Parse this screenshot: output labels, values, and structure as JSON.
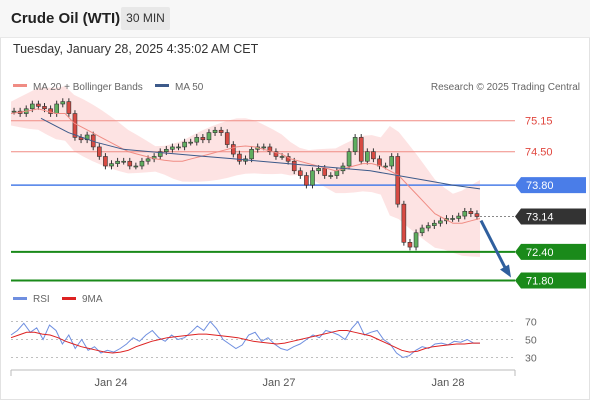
{
  "header": {
    "instrument": "Crude Oil (WTI)",
    "interval": "30 MIN",
    "datetime": "Tuesday, January 28, 2025 4:35:02 AM CET"
  },
  "legend": {
    "ma20_label": "MA 20 + Bollinger Bands",
    "ma50_label": "MA 50",
    "copyright": "Research © 2025 Trading Central"
  },
  "rsi_legend": {
    "rsi_label": "RSI",
    "ma_label": "9MA"
  },
  "colors": {
    "ma20": "#f08c84",
    "ma50": "#3d5a8a",
    "bb_fill": "#fde0e0",
    "resistance": "#f08c84",
    "pivot": "#4a7de8",
    "support": "#1a8a1a",
    "current": "#333333",
    "arrow": "#2f5f9e",
    "rsi": "#6f8fe0",
    "rsi_ma": "#dd2222"
  },
  "chart_data": [
    {
      "type": "candlestick",
      "title": "Crude Oil (WTI) 30 MIN",
      "x_labels": [
        "Jan 24",
        "Jan 27",
        "Jan 28"
      ],
      "ylim": [
        71.6,
        75.5
      ],
      "levels": [
        {
          "label": "75.15",
          "value": 75.15,
          "kind": "resistance"
        },
        {
          "label": "74.50",
          "value": 74.5,
          "kind": "resistance"
        },
        {
          "label": "73.80",
          "value": 73.8,
          "kind": "pivot"
        },
        {
          "label": "72.40",
          "value": 72.4,
          "kind": "support"
        },
        {
          "label": "71.80",
          "value": 71.8,
          "kind": "support"
        }
      ],
      "current_price": {
        "label": "73.14",
        "value": 73.14
      },
      "forecast": {
        "from": 73.14,
        "to": 71.8,
        "direction": "down"
      },
      "series": [
        {
          "name": "Price",
          "values": [
            75.35,
            75.3,
            75.4,
            75.5,
            75.45,
            75.4,
            75.3,
            75.5,
            75.55,
            75.3,
            74.8,
            74.75,
            74.85,
            74.6,
            74.4,
            74.2,
            74.25,
            74.3,
            74.3,
            74.2,
            74.2,
            74.3,
            74.35,
            74.4,
            74.5,
            74.55,
            74.6,
            74.6,
            74.7,
            74.7,
            74.8,
            74.75,
            74.9,
            74.95,
            74.9,
            74.65,
            74.45,
            74.3,
            74.35,
            74.55,
            74.6,
            74.6,
            74.5,
            74.4,
            74.4,
            74.3,
            74.1,
            74.0,
            73.8,
            74.1,
            74.15,
            74.0,
            74.0,
            74.1,
            74.2,
            74.5,
            74.8,
            74.3,
            74.5,
            74.35,
            74.2,
            74.2,
            74.4,
            73.4,
            72.6,
            72.5,
            72.8,
            72.9,
            72.95,
            73.0,
            73.05,
            73.1,
            73.1,
            73.15,
            73.25,
            73.2,
            73.14
          ]
        },
        {
          "name": "MA 20",
          "values": [
            75.3,
            75.33,
            75.36,
            75.4,
            75.35,
            75.3,
            75.3,
            75.1,
            75.0,
            74.9,
            74.8,
            74.7,
            74.6,
            74.5,
            74.45,
            74.4,
            74.35,
            74.32,
            74.3,
            74.3,
            74.35,
            74.4,
            74.45,
            74.5,
            74.55,
            74.6,
            74.62,
            74.6,
            74.55,
            74.5,
            74.45,
            74.35,
            74.3,
            74.25,
            74.2,
            74.15,
            74.1,
            74.15,
            74.2,
            74.25,
            74.25,
            74.2,
            74.1,
            74.0,
            73.8,
            73.6,
            73.4,
            73.2,
            73.1,
            73.0,
            73.0,
            73.05,
            73.1
          ]
        },
        {
          "name": "MA 50",
          "values": [
            75.2,
            74.9,
            74.7,
            74.55,
            74.5,
            74.45,
            74.4,
            74.35,
            74.3,
            74.25,
            74.2,
            74.15,
            74.1,
            74.0,
            73.9,
            73.8,
            73.72
          ]
        }
      ]
    },
    {
      "type": "line",
      "title": "RSI",
      "x_labels": [
        "Jan 24",
        "Jan 27",
        "Jan 28"
      ],
      "ylim": [
        25,
        75
      ],
      "yticks": [
        70,
        50,
        30
      ],
      "series": [
        {
          "name": "RSI",
          "values": [
            55,
            60,
            68,
            58,
            63,
            50,
            66,
            60,
            45,
            55,
            40,
            50,
            38,
            42,
            35,
            38,
            36,
            40,
            45,
            52,
            48,
            55,
            60,
            52,
            48,
            55,
            50,
            52,
            58,
            65,
            60,
            70,
            62,
            50,
            45,
            40,
            44,
            55,
            58,
            48,
            52,
            45,
            40,
            38,
            42,
            45,
            50,
            55,
            52,
            60,
            58,
            55,
            50,
            62,
            70,
            55,
            58,
            60,
            50,
            45,
            35,
            30,
            32,
            38,
            42,
            40,
            45,
            46,
            44,
            48,
            47,
            50,
            46,
            46
          ]
        },
        {
          "name": "9MA",
          "values": [
            52,
            55,
            58,
            58,
            56,
            55,
            52,
            48,
            45,
            42,
            40,
            38,
            36,
            35,
            36,
            38,
            42,
            45,
            48,
            50,
            52,
            53,
            54,
            55,
            56,
            56,
            55,
            54,
            53,
            52,
            50,
            48,
            47,
            46,
            45,
            46,
            48,
            50,
            52,
            54,
            56,
            58,
            60,
            60,
            58,
            56,
            54,
            50,
            46,
            42,
            38,
            36,
            37,
            40,
            42,
            43,
            44,
            45,
            45,
            46,
            46
          ]
        }
      ]
    }
  ]
}
